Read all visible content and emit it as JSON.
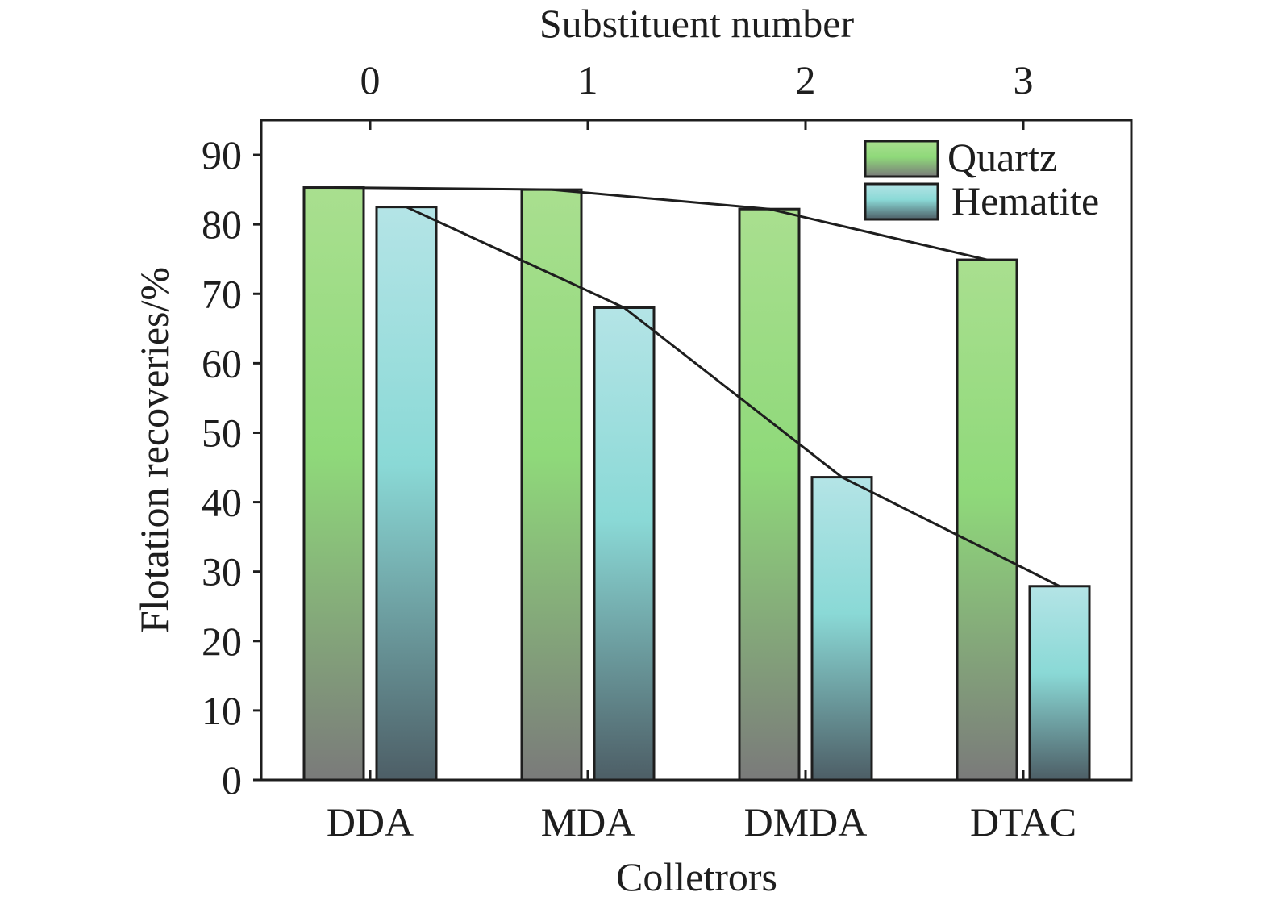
{
  "chart_data": {
    "type": "bar",
    "top_axis_title": "Substituent number",
    "top_ticks": [
      "0",
      "1",
      "2",
      "3"
    ],
    "categories": [
      "DDA",
      "MDA",
      "DMDA",
      "DTAC"
    ],
    "xlabel": "Colletrors",
    "ylabel": "Flotation recoveries/%",
    "ylim": [
      0,
      95
    ],
    "yticks": [
      0,
      10,
      20,
      30,
      40,
      50,
      60,
      70,
      80,
      90
    ],
    "legend_position": "top-right",
    "series": [
      {
        "name": "Quartz",
        "values": [
          85.3,
          85.0,
          82.2,
          74.9
        ],
        "gradient_colors": [
          "#a9df8f",
          "#8fd97a",
          "#7a7a7a"
        ],
        "trend_line": true
      },
      {
        "name": "Hematite",
        "values": [
          82.5,
          68.0,
          43.6,
          27.9
        ],
        "gradient_colors": [
          "#b4e4e6",
          "#8ad9d6",
          "#4d5e66"
        ],
        "trend_line": true
      }
    ],
    "grid": false
  }
}
